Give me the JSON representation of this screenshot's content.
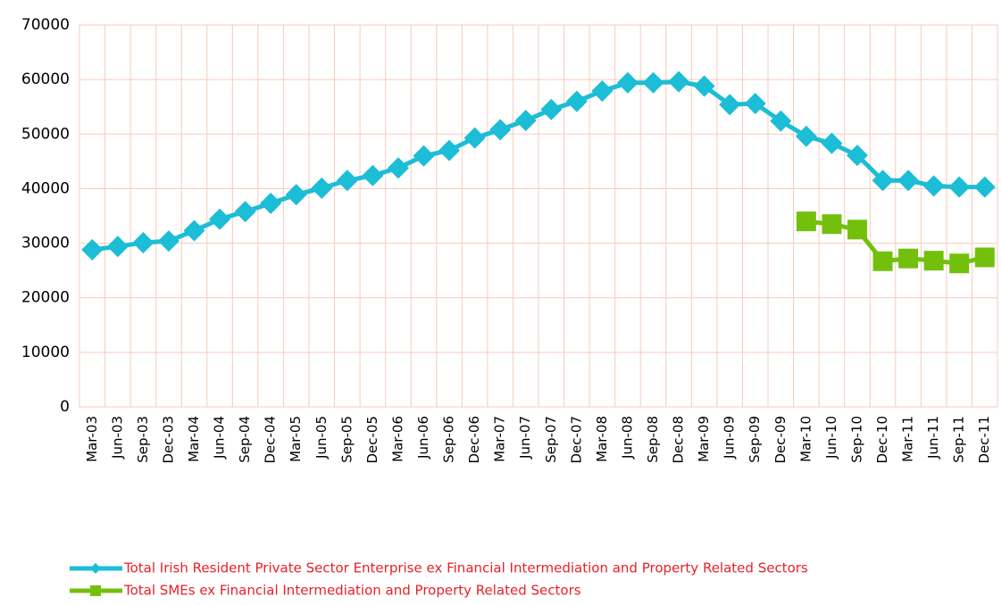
{
  "chart_data": {
    "type": "line",
    "categories": [
      "Mar-03",
      "Jun-03",
      "Sep-03",
      "Dec-03",
      "Mar-04",
      "Jun-04",
      "Sep-04",
      "Dec-04",
      "Mar-05",
      "Jun-05",
      "Sep-05",
      "Dec-05",
      "Mar-06",
      "Jun-06",
      "Sep-06",
      "Dec-06",
      "Mar-07",
      "Jun-07",
      "Sep-07",
      "Dec-07",
      "Mar-08",
      "Jun-08",
      "Sep-08",
      "Dec-08",
      "Mar-09",
      "Jun-09",
      "Sep-09",
      "Dec-09",
      "Mar-10",
      "Jun-10",
      "Sep-10",
      "Dec-10",
      "Mar-11",
      "Jun-11",
      "Sep-11",
      "Dec-11"
    ],
    "series": [
      {
        "name": "Total Irish Resident Private Sector Enterprise ex Financial Intermediation and Property Related Sectors",
        "color": "#1cbdd6",
        "marker": "diamond",
        "values": [
          28800,
          29400,
          30100,
          30400,
          32300,
          34400,
          35800,
          37300,
          38900,
          40100,
          41500,
          42400,
          43800,
          46000,
          47000,
          49300,
          50800,
          52500,
          54500,
          56000,
          57900,
          59400,
          59400,
          59600,
          58800,
          55400,
          55600,
          52400,
          49600,
          48300,
          46100,
          41500,
          41500,
          40500,
          40300,
          40300
        ]
      },
      {
        "name": "Total SMEs ex Financial Intermediation and Property Related Sectors",
        "color": "#73c00c",
        "marker": "square",
        "values": [
          null,
          null,
          null,
          null,
          null,
          null,
          null,
          null,
          null,
          null,
          null,
          null,
          null,
          null,
          null,
          null,
          null,
          null,
          null,
          null,
          null,
          null,
          null,
          null,
          null,
          null,
          null,
          null,
          34000,
          33500,
          32500,
          26700,
          27200,
          26800,
          26300,
          27400
        ]
      }
    ],
    "ylim": [
      0,
      70000
    ],
    "yticks": [
      0,
      10000,
      20000,
      30000,
      40000,
      50000,
      60000,
      70000
    ],
    "grid": true
  }
}
